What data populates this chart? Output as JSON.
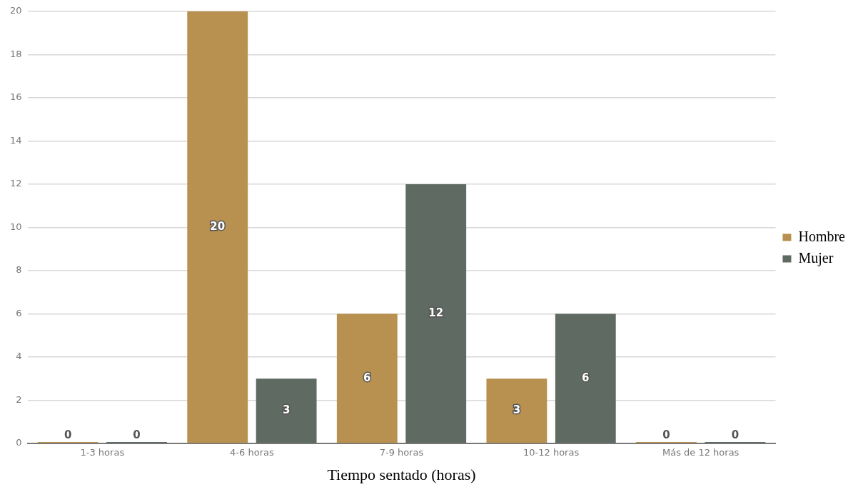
{
  "chart_data": {
    "type": "bar",
    "xlabel": "Tiempo sentado (horas)",
    "categories": [
      "1-3 horas",
      "4-6 horas",
      "7-9 horas",
      "10-12 horas",
      "Más de 12 horas"
    ],
    "series": [
      {
        "name": "Hombre",
        "color": "#b8904f",
        "values": [
          0,
          20,
          6,
          3,
          0
        ]
      },
      {
        "name": "Mujer",
        "color": "#5f6b62",
        "values": [
          0,
          3,
          12,
          6,
          0
        ]
      }
    ],
    "ylim": [
      0,
      20
    ],
    "yticks": [
      0,
      2,
      4,
      6,
      8,
      10,
      12,
      14,
      16,
      18,
      20
    ],
    "grid": "y",
    "legend": "right",
    "data_labels": true
  }
}
